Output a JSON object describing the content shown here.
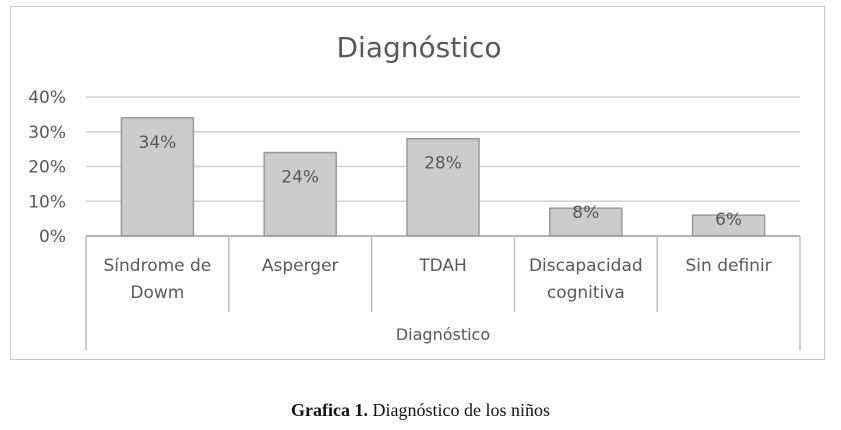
{
  "chart_data": {
    "type": "bar",
    "title": "Diagnóstico",
    "xlabel": "Diagnóstico",
    "ylabel": "",
    "categories": [
      [
        "Síndrome de",
        "Dowm"
      ],
      [
        "Asperger"
      ],
      [
        "TDAH"
      ],
      [
        "Discapacidad",
        "cognitiva"
      ],
      [
        "Sin definir"
      ]
    ],
    "values": [
      34,
      24,
      28,
      8,
      6
    ],
    "data_labels": [
      "34%",
      "24%",
      "28%",
      "8%",
      "6%"
    ],
    "ylim": [
      0,
      40
    ],
    "yticks": [
      0,
      10,
      20,
      30,
      40
    ],
    "ytick_labels": [
      "0%",
      "10%",
      "20%",
      "30%",
      "40%"
    ],
    "grid": true,
    "legend": "none",
    "colors": {
      "bar_fill": "#cccccc",
      "bar_stroke": "#9a9a9a",
      "grid": "#d0d0d0",
      "text": "#595959"
    }
  },
  "caption": {
    "label": "Grafica 1.",
    "text": "Diagnóstico de los niños"
  }
}
